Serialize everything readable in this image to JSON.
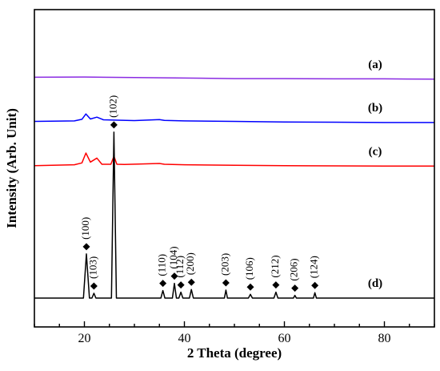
{
  "chart_data": {
    "type": "line",
    "xlabel": "2 Theta (degree)",
    "ylabel": "Intensity (Arb. Unit)",
    "xlim": [
      10,
      90
    ],
    "xticks": [
      20,
      40,
      60,
      80
    ],
    "yticks": [],
    "grid": false,
    "legend": "none",
    "series": [
      {
        "name": "(a)",
        "color": "#8a2be2",
        "x": [
          10,
          20,
          30,
          40,
          50,
          60,
          70,
          80,
          90
        ],
        "y": [
          8.55,
          8.56,
          8.54,
          8.52,
          8.5,
          8.5,
          8.49,
          8.49,
          8.48
        ]
      },
      {
        "name": "(b)",
        "color": "#0000ff",
        "x": [
          10,
          18,
          19.5,
          20.3,
          21.2,
          22.5,
          23.8,
          26,
          30,
          35,
          36,
          40,
          50,
          60,
          70,
          80,
          90
        ],
        "y": [
          6.9,
          6.92,
          6.98,
          7.18,
          6.99,
          7.06,
          6.96,
          6.95,
          6.93,
          6.97,
          6.94,
          6.92,
          6.9,
          6.88,
          6.87,
          6.86,
          6.86
        ]
      },
      {
        "name": "(c)",
        "color": "#ff0000",
        "x": [
          10,
          18,
          19.5,
          20.3,
          21.2,
          22.5,
          23.5,
          25.3,
          25.9,
          26.5,
          28,
          35,
          36,
          40,
          50,
          60,
          70,
          80,
          90
        ],
        "y": [
          5.25,
          5.28,
          5.35,
          5.72,
          5.38,
          5.53,
          5.3,
          5.3,
          5.6,
          5.3,
          5.29,
          5.33,
          5.3,
          5.28,
          5.26,
          5.25,
          5.24,
          5.23,
          5.23
        ]
      },
      {
        "name": "(d)",
        "color": "#000000",
        "x": [
          10,
          19.8,
          20.4,
          21,
          21.5,
          21.9,
          22.3,
          25.4,
          25.9,
          26.4,
          35.3,
          35.7,
          36.1,
          37.6,
          38.0,
          38.4,
          38.9,
          39.3,
          39.7,
          41.0,
          41.4,
          41.8,
          48.0,
          48.3,
          48.6,
          52.8,
          53.2,
          53.6,
          57.9,
          58.3,
          58.7,
          61.8,
          62.1,
          62.4,
          65.8,
          66.1,
          66.4,
          70,
          90
        ],
        "y": [
          0.3,
          0.3,
          1.95,
          0.3,
          0.3,
          0.48,
          0.3,
          0.3,
          6.5,
          0.3,
          0.3,
          0.58,
          0.3,
          0.3,
          0.85,
          0.3,
          0.3,
          0.52,
          0.3,
          0.3,
          0.62,
          0.3,
          0.3,
          0.6,
          0.3,
          0.3,
          0.44,
          0.3,
          0.3,
          0.52,
          0.3,
          0.3,
          0.4,
          0.3,
          0.3,
          0.5,
          0.3,
          0.3,
          0.3
        ]
      }
    ],
    "peak_labels": [
      {
        "x": 20.4,
        "y": 1.95,
        "hkl": "(100)"
      },
      {
        "x": 21.9,
        "y": 0.48,
        "hkl": "(103)"
      },
      {
        "x": 25.9,
        "y": 6.5,
        "hkl": "(102)"
      },
      {
        "x": 35.7,
        "y": 0.58,
        "hkl": "(110)"
      },
      {
        "x": 38.0,
        "y": 0.85,
        "hkl": "(104)"
      },
      {
        "x": 39.3,
        "y": 0.52,
        "hkl": "(112)"
      },
      {
        "x": 41.4,
        "y": 0.62,
        "hkl": "(200)"
      },
      {
        "x": 48.3,
        "y": 0.6,
        "hkl": "(203)"
      },
      {
        "x": 53.2,
        "y": 0.44,
        "hkl": "(106)"
      },
      {
        "x": 58.3,
        "y": 0.52,
        "hkl": "(212)"
      },
      {
        "x": 62.1,
        "y": 0.4,
        "hkl": "(206)"
      },
      {
        "x": 66.1,
        "y": 0.5,
        "hkl": "(124)"
      }
    ]
  }
}
